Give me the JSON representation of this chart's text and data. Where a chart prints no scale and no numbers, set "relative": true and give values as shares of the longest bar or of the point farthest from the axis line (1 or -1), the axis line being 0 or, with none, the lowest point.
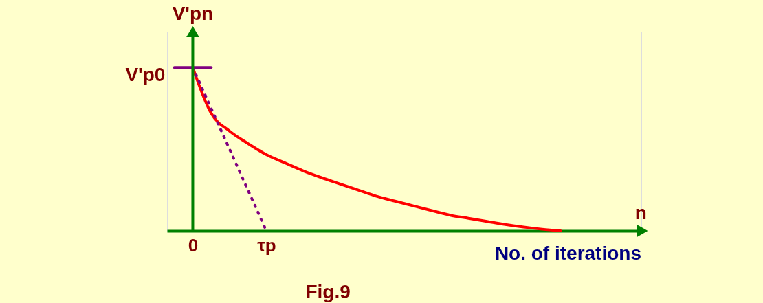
{
  "chart_data": {
    "type": "line",
    "title": "Fig.9",
    "xlabel": "n",
    "ylabel": "V'pn",
    "relative": true,
    "annotations": [
      "No. of iterations",
      {
        "text": "V'p0",
        "x": "0",
        "y": 1
      }
    ],
    "categories": [
      null,
      "0",
      null,
      null,
      null,
      "τp",
      null,
      null,
      null,
      null,
      null,
      null,
      null,
      null,
      null,
      null,
      null,
      null,
      null,
      null,
      null,
      null,
      null,
      null,
      null,
      null
    ],
    "series": [
      {
        "color": "#ff0000",
        "line_style": "solid",
        "values": [
          null,
          1,
          0.72,
          0.611,
          0.535,
          0.467,
          0.417,
          0.368,
          0.326,
          0.288,
          0.25,
          0.212,
          0.182,
          0.153,
          0.124,
          0.096,
          0.077,
          0.058,
          0.039,
          0.023,
          0.01,
          0.0,
          null,
          null,
          null,
          null
        ]
      },
      {
        "color": "#800080",
        "line_style": "dotted",
        "values": [
          null,
          1,
          null,
          null,
          null,
          0,
          null,
          null,
          null,
          null,
          null,
          null,
          null,
          null,
          null,
          null,
          null,
          null,
          null,
          null,
          null,
          null,
          null,
          null,
          null,
          null
        ]
      },
      {
        "color": "#800080",
        "line_style": "solid",
        "values": [
          1,
          1,
          1,
          null,
          null,
          null,
          null,
          null,
          null,
          null,
          null,
          null,
          null,
          null,
          null,
          null,
          null,
          null,
          null,
          null,
          null,
          null,
          null,
          null,
          null,
          null
        ]
      }
    ],
    "grid": false
  }
}
